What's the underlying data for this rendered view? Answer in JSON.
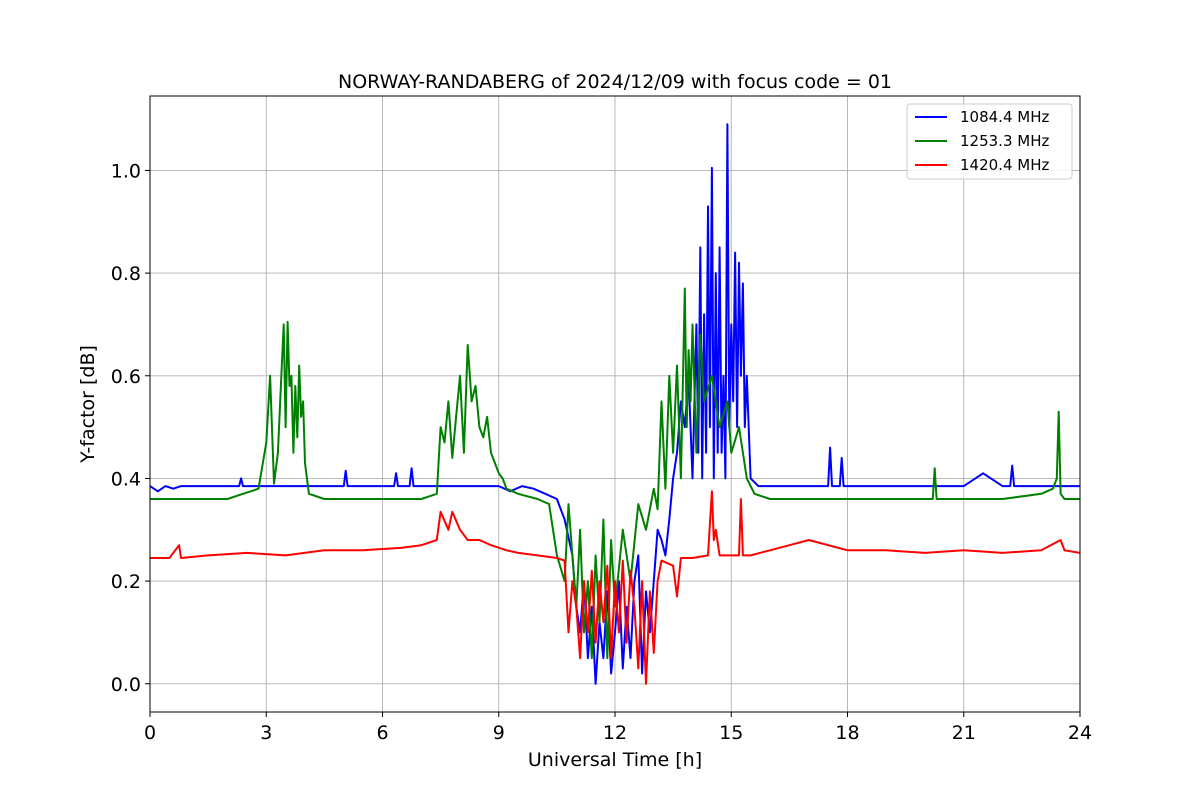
{
  "chart_data": {
    "type": "line",
    "title": "NORWAY-RANDABERG of 2024/12/09 with focus code = 01",
    "xlabel": "Universal Time [h]",
    "ylabel": "Y-factor [dB]",
    "xlim": [
      0,
      24
    ],
    "ylim": [
      -0.055,
      1.145
    ],
    "xticks": [
      0,
      3,
      6,
      9,
      12,
      15,
      18,
      21,
      24
    ],
    "xtick_labels": [
      "0",
      "3",
      "6",
      "9",
      "12",
      "15",
      "18",
      "21",
      "24"
    ],
    "yticks": [
      0.0,
      0.2,
      0.4,
      0.6,
      0.8,
      1.0
    ],
    "ytick_labels": [
      "0.0",
      "0.2",
      "0.4",
      "0.6",
      "0.8",
      "1.0"
    ],
    "grid": true,
    "legend_position": "top-right",
    "series": [
      {
        "name": "1084.4 MHz",
        "color": "#0000ff",
        "x": [
          0,
          0.2,
          0.4,
          0.6,
          0.8,
          1.0,
          2.3,
          2.35,
          2.4,
          5.0,
          5.05,
          5.1,
          6.3,
          6.35,
          6.4,
          6.7,
          6.75,
          6.8,
          7.0,
          9.0,
          9.3,
          9.6,
          9.9,
          10.2,
          10.5,
          10.7,
          10.9,
          11.0,
          11.1,
          11.2,
          11.3,
          11.4,
          11.5,
          11.6,
          11.7,
          11.8,
          11.9,
          12.0,
          12.1,
          12.2,
          12.3,
          12.4,
          12.5,
          12.6,
          12.7,
          12.8,
          12.9,
          13.0,
          13.1,
          13.2,
          13.3,
          13.4,
          13.5,
          13.6,
          13.7,
          13.8,
          13.9,
          14.0,
          14.1,
          14.15,
          14.2,
          14.25,
          14.3,
          14.35,
          14.4,
          14.45,
          14.5,
          14.55,
          14.6,
          14.65,
          14.7,
          14.75,
          14.8,
          14.85,
          14.9,
          14.95,
          15.0,
          15.05,
          15.1,
          15.15,
          15.2,
          15.25,
          15.3,
          15.35,
          15.4,
          15.5,
          15.7,
          16.0,
          17.0,
          17.5,
          17.55,
          17.6,
          17.8,
          17.85,
          17.9,
          19.0,
          20.0,
          21.0,
          21.5,
          22.0,
          22.2,
          22.25,
          22.3,
          23.0,
          23.5,
          24.0
        ],
        "y": [
          0.385,
          0.375,
          0.385,
          0.38,
          0.385,
          0.385,
          0.385,
          0.4,
          0.385,
          0.385,
          0.415,
          0.385,
          0.385,
          0.41,
          0.385,
          0.385,
          0.42,
          0.385,
          0.385,
          0.385,
          0.375,
          0.385,
          0.38,
          0.37,
          0.36,
          0.32,
          0.25,
          0.15,
          0.1,
          0.2,
          0.05,
          0.15,
          0.0,
          0.12,
          0.05,
          0.18,
          0.02,
          0.1,
          0.2,
          0.03,
          0.15,
          0.05,
          0.2,
          0.25,
          0.02,
          0.18,
          0.1,
          0.2,
          0.3,
          0.28,
          0.25,
          0.32,
          0.4,
          0.45,
          0.55,
          0.5,
          0.6,
          0.4,
          0.7,
          0.45,
          0.85,
          0.4,
          0.72,
          0.45,
          0.93,
          0.5,
          1.005,
          0.4,
          0.8,
          0.45,
          0.85,
          0.45,
          0.6,
          0.4,
          1.09,
          0.5,
          0.7,
          0.55,
          0.84,
          0.5,
          0.82,
          0.6,
          0.78,
          0.5,
          0.6,
          0.4,
          0.385,
          0.385,
          0.385,
          0.385,
          0.46,
          0.385,
          0.385,
          0.44,
          0.385,
          0.385,
          0.385,
          0.385,
          0.41,
          0.385,
          0.385,
          0.425,
          0.385,
          0.385,
          0.385,
          0.385
        ]
      },
      {
        "name": "1253.3 MHz",
        "color": "#008000",
        "x": [
          0,
          1.0,
          2.0,
          2.4,
          2.6,
          2.8,
          3.0,
          3.1,
          3.2,
          3.3,
          3.4,
          3.45,
          3.5,
          3.55,
          3.6,
          3.65,
          3.7,
          3.75,
          3.8,
          3.85,
          3.9,
          3.95,
          4.0,
          4.1,
          4.5,
          5.5,
          6.5,
          7.0,
          7.4,
          7.5,
          7.6,
          7.7,
          7.8,
          7.9,
          8.0,
          8.1,
          8.2,
          8.3,
          8.4,
          8.5,
          8.6,
          8.7,
          8.8,
          8.9,
          9.0,
          9.1,
          9.2,
          9.5,
          10.0,
          10.3,
          10.5,
          10.7,
          10.8,
          10.9,
          11.0,
          11.1,
          11.2,
          11.3,
          11.4,
          11.5,
          11.6,
          11.7,
          11.8,
          11.9,
          12.0,
          12.2,
          12.4,
          12.6,
          12.8,
          13.0,
          13.1,
          13.2,
          13.3,
          13.4,
          13.5,
          13.6,
          13.7,
          13.8,
          13.85,
          13.9,
          13.95,
          14.0,
          14.1,
          14.2,
          14.3,
          14.5,
          14.7,
          14.9,
          15.0,
          15.2,
          15.4,
          15.6,
          16.0,
          18.0,
          20.0,
          20.2,
          20.25,
          20.3,
          22.0,
          23.0,
          23.3,
          23.4,
          23.45,
          23.5,
          23.6,
          24.0
        ],
        "y": [
          0.36,
          0.36,
          0.36,
          0.37,
          0.375,
          0.38,
          0.47,
          0.6,
          0.39,
          0.45,
          0.62,
          0.7,
          0.5,
          0.705,
          0.58,
          0.6,
          0.45,
          0.58,
          0.48,
          0.62,
          0.52,
          0.55,
          0.43,
          0.37,
          0.36,
          0.36,
          0.36,
          0.36,
          0.37,
          0.5,
          0.47,
          0.55,
          0.44,
          0.52,
          0.6,
          0.45,
          0.66,
          0.55,
          0.58,
          0.5,
          0.48,
          0.52,
          0.45,
          0.43,
          0.41,
          0.4,
          0.38,
          0.37,
          0.36,
          0.35,
          0.25,
          0.2,
          0.35,
          0.25,
          0.15,
          0.3,
          0.1,
          0.2,
          0.05,
          0.25,
          0.12,
          0.32,
          0.05,
          0.28,
          0.15,
          0.3,
          0.2,
          0.35,
          0.3,
          0.38,
          0.34,
          0.55,
          0.38,
          0.6,
          0.45,
          0.62,
          0.4,
          0.77,
          0.5,
          0.65,
          0.55,
          0.7,
          0.45,
          0.68,
          0.55,
          0.6,
          0.5,
          0.55,
          0.45,
          0.5,
          0.4,
          0.37,
          0.36,
          0.36,
          0.36,
          0.36,
          0.42,
          0.36,
          0.36,
          0.37,
          0.38,
          0.4,
          0.53,
          0.37,
          0.36,
          0.36
        ]
      },
      {
        "name": "1420.4 MHz",
        "color": "#ff0000",
        "x": [
          0,
          0.5,
          0.75,
          0.8,
          1.5,
          2.5,
          3.5,
          4.5,
          5.5,
          6.5,
          7.0,
          7.4,
          7.5,
          7.7,
          7.8,
          8.0,
          8.2,
          8.5,
          8.8,
          9.0,
          9.2,
          9.5,
          10.0,
          10.5,
          10.7,
          10.8,
          10.9,
          11.0,
          11.1,
          11.2,
          11.3,
          11.4,
          11.5,
          11.6,
          11.7,
          11.8,
          11.9,
          12.0,
          12.1,
          12.2,
          12.3,
          12.4,
          12.5,
          12.6,
          12.7,
          12.8,
          12.9,
          13.0,
          13.1,
          13.2,
          13.5,
          13.6,
          13.7,
          13.9,
          14.0,
          14.4,
          14.5,
          14.55,
          14.6,
          14.7,
          15.0,
          15.2,
          15.25,
          15.3,
          15.5,
          16.0,
          16.5,
          17.0,
          18.0,
          19.0,
          20.0,
          21.0,
          22.0,
          23.0,
          23.5,
          23.6,
          24.0
        ],
        "y": [
          0.245,
          0.245,
          0.27,
          0.245,
          0.25,
          0.255,
          0.25,
          0.26,
          0.26,
          0.265,
          0.27,
          0.28,
          0.335,
          0.3,
          0.335,
          0.3,
          0.28,
          0.28,
          0.27,
          0.265,
          0.26,
          0.255,
          0.25,
          0.245,
          0.24,
          0.1,
          0.2,
          0.15,
          0.05,
          0.2,
          0.1,
          0.22,
          0.08,
          0.2,
          0.12,
          0.23,
          0.05,
          0.2,
          0.1,
          0.24,
          0.08,
          0.22,
          0.15,
          0.03,
          0.2,
          0.0,
          0.18,
          0.06,
          0.2,
          0.24,
          0.23,
          0.17,
          0.245,
          0.245,
          0.245,
          0.25,
          0.375,
          0.28,
          0.3,
          0.25,
          0.25,
          0.25,
          0.36,
          0.25,
          0.25,
          0.26,
          0.27,
          0.28,
          0.26,
          0.26,
          0.255,
          0.26,
          0.255,
          0.26,
          0.28,
          0.26,
          0.255
        ]
      }
    ]
  }
}
